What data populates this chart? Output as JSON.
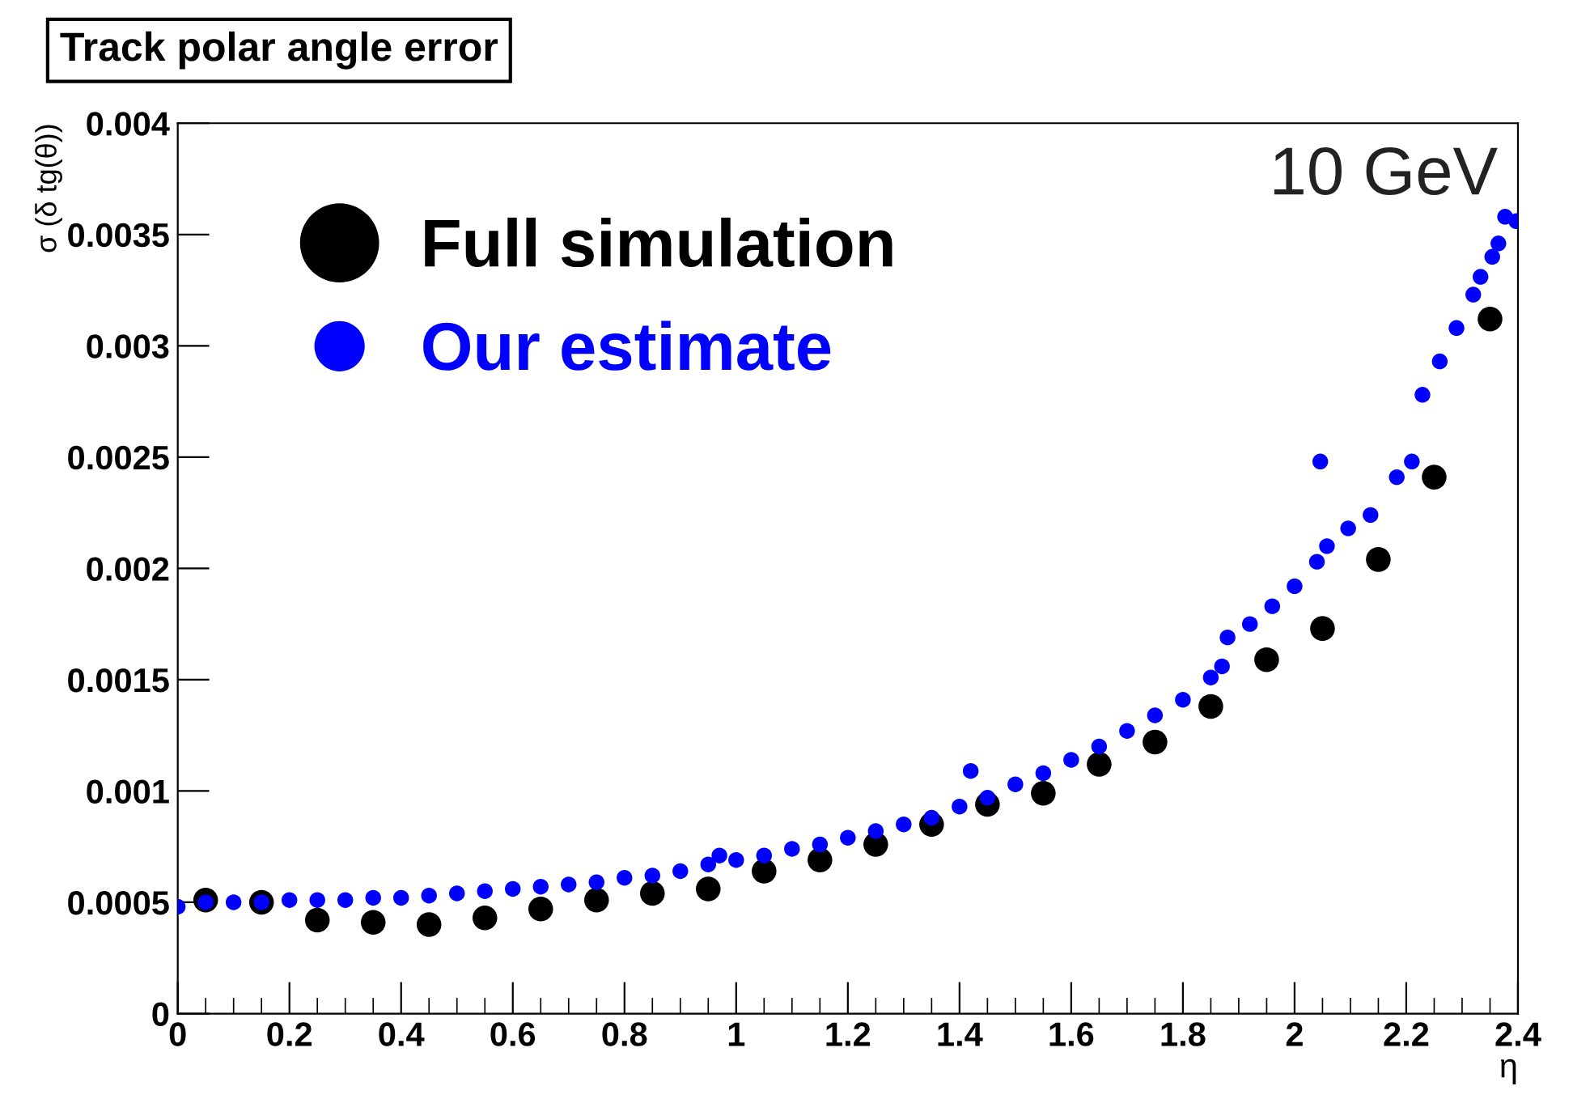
{
  "chart_data": {
    "type": "scatter",
    "title": "Track polar angle error",
    "xlabel": "η",
    "ylabel": "σ (δ tg(θ))",
    "annotations": [
      "10 GeV"
    ],
    "xlim": [
      0,
      2.4
    ],
    "xticks": [
      0,
      0.2,
      0.4,
      0.6,
      0.8,
      1,
      1.2,
      1.4,
      1.6,
      1.8,
      2,
      2.2,
      2.4
    ],
    "ylim": [
      0,
      0.004
    ],
    "yticks": [
      0,
      0.0005,
      0.001,
      0.0015,
      0.002,
      0.0025,
      0.003,
      0.0035,
      0.004
    ],
    "legend": "top left",
    "marker": "circle",
    "grid": false,
    "series": [
      {
        "name": "Full simulation",
        "color": "#000000",
        "x": [
          0.05,
          0.15,
          0.25,
          0.35,
          0.45,
          0.55,
          0.65,
          0.75,
          0.85,
          0.95,
          1.05,
          1.15,
          1.25,
          1.35,
          1.45,
          1.55,
          1.65,
          1.75,
          1.85,
          1.95,
          2.05,
          2.15,
          2.25,
          2.35
        ],
        "values": [
          0.00051,
          0.0005,
          0.00042,
          0.00041,
          0.0004,
          0.00043,
          0.00047,
          0.00051,
          0.00054,
          0.00056,
          0.00064,
          0.00069,
          0.00076,
          0.00085,
          0.00094,
          0.00099,
          0.00112,
          0.00122,
          0.00138,
          0.00159,
          0.00173,
          0.00204,
          0.00241,
          0.00312
        ]
      },
      {
        "name": "Our estimate",
        "color": "#0000ff",
        "x": [
          0.0,
          0.05,
          0.1,
          0.15,
          0.2,
          0.25,
          0.3,
          0.35,
          0.4,
          0.45,
          0.5,
          0.55,
          0.6,
          0.65,
          0.7,
          0.75,
          0.8,
          0.85,
          0.9,
          0.95,
          0.97,
          1.0,
          1.05,
          1.1,
          1.15,
          1.2,
          1.25,
          1.3,
          1.35,
          1.4,
          1.42,
          1.45,
          1.5,
          1.55,
          1.6,
          1.65,
          1.7,
          1.75,
          1.8,
          1.85,
          1.87,
          1.88,
          1.92,
          1.96,
          2.0,
          2.04,
          2.046,
          2.058,
          2.096,
          2.136,
          2.183,
          2.21,
          2.229,
          2.26,
          2.29,
          2.32,
          2.333,
          2.354,
          2.365,
          2.377,
          2.397
        ],
        "values": [
          0.00048,
          0.0005,
          0.0005,
          0.0005,
          0.00051,
          0.00051,
          0.00051,
          0.00052,
          0.00052,
          0.00053,
          0.00054,
          0.00055,
          0.00056,
          0.00057,
          0.00058,
          0.00059,
          0.00061,
          0.00062,
          0.00064,
          0.00067,
          0.00071,
          0.00069,
          0.00071,
          0.00074,
          0.00076,
          0.00079,
          0.00082,
          0.00085,
          0.00088,
          0.00093,
          0.00109,
          0.00097,
          0.00103,
          0.00108,
          0.00114,
          0.0012,
          0.00127,
          0.00134,
          0.00141,
          0.00151,
          0.00156,
          0.00169,
          0.00175,
          0.00183,
          0.00192,
          0.00203,
          0.00248,
          0.0021,
          0.00218,
          0.00224,
          0.00241,
          0.00248,
          0.00278,
          0.00293,
          0.00308,
          0.00323,
          0.00331,
          0.0034,
          0.00346,
          0.00358,
          0.00356
        ]
      }
    ]
  }
}
